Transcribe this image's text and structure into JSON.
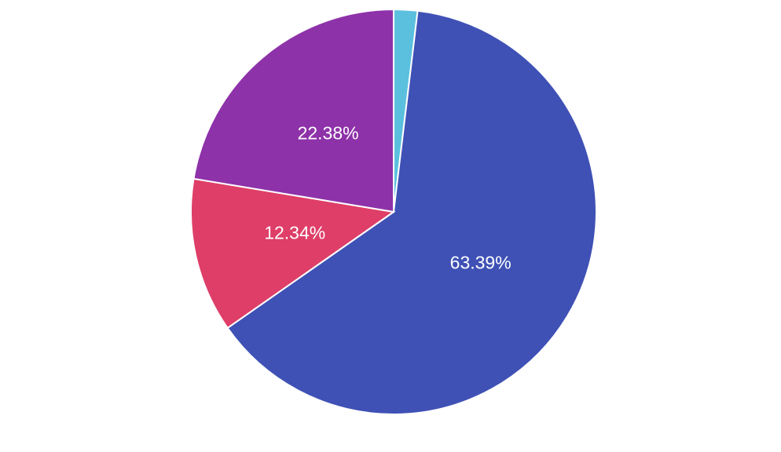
{
  "chart_data": {
    "type": "pie",
    "values": [
      1.89,
      63.39,
      12.34,
      22.38
    ],
    "value_labels": [
      null,
      "63.39%",
      "12.34%",
      "22.38%"
    ],
    "colors": [
      "#5bc0de",
      "#3f51b5",
      "#de3e68",
      "#8e32a9"
    ]
  }
}
